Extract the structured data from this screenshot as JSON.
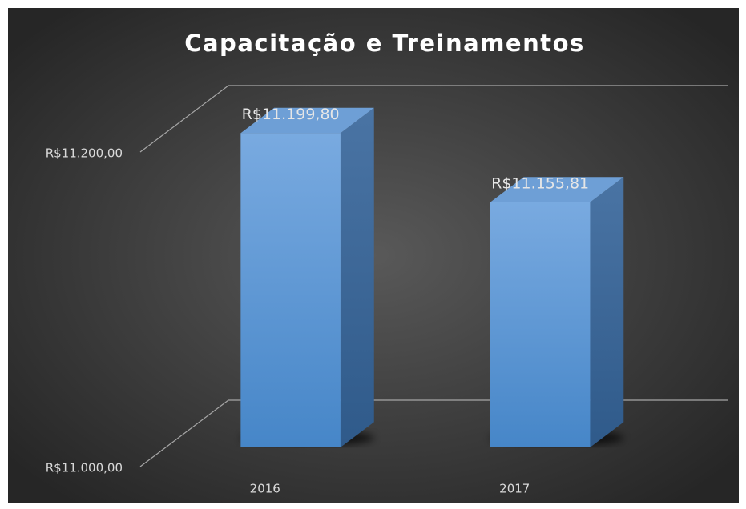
{
  "chart_data": {
    "type": "bar3d",
    "title": "Capacitação e Treinamentos",
    "categories": [
      "2016",
      "2017"
    ],
    "values": [
      11199.8,
      11155.81
    ],
    "value_labels": [
      "R$11.199,80",
      "R$11.155,81"
    ],
    "color": "#5b9bd5",
    "ylim": [
      11000,
      11200
    ],
    "yticks": [
      {
        "value": 11000,
        "label": "R$11.000,00"
      },
      {
        "value": 11200,
        "label": "R$11.200,00"
      }
    ],
    "grid": true
  }
}
